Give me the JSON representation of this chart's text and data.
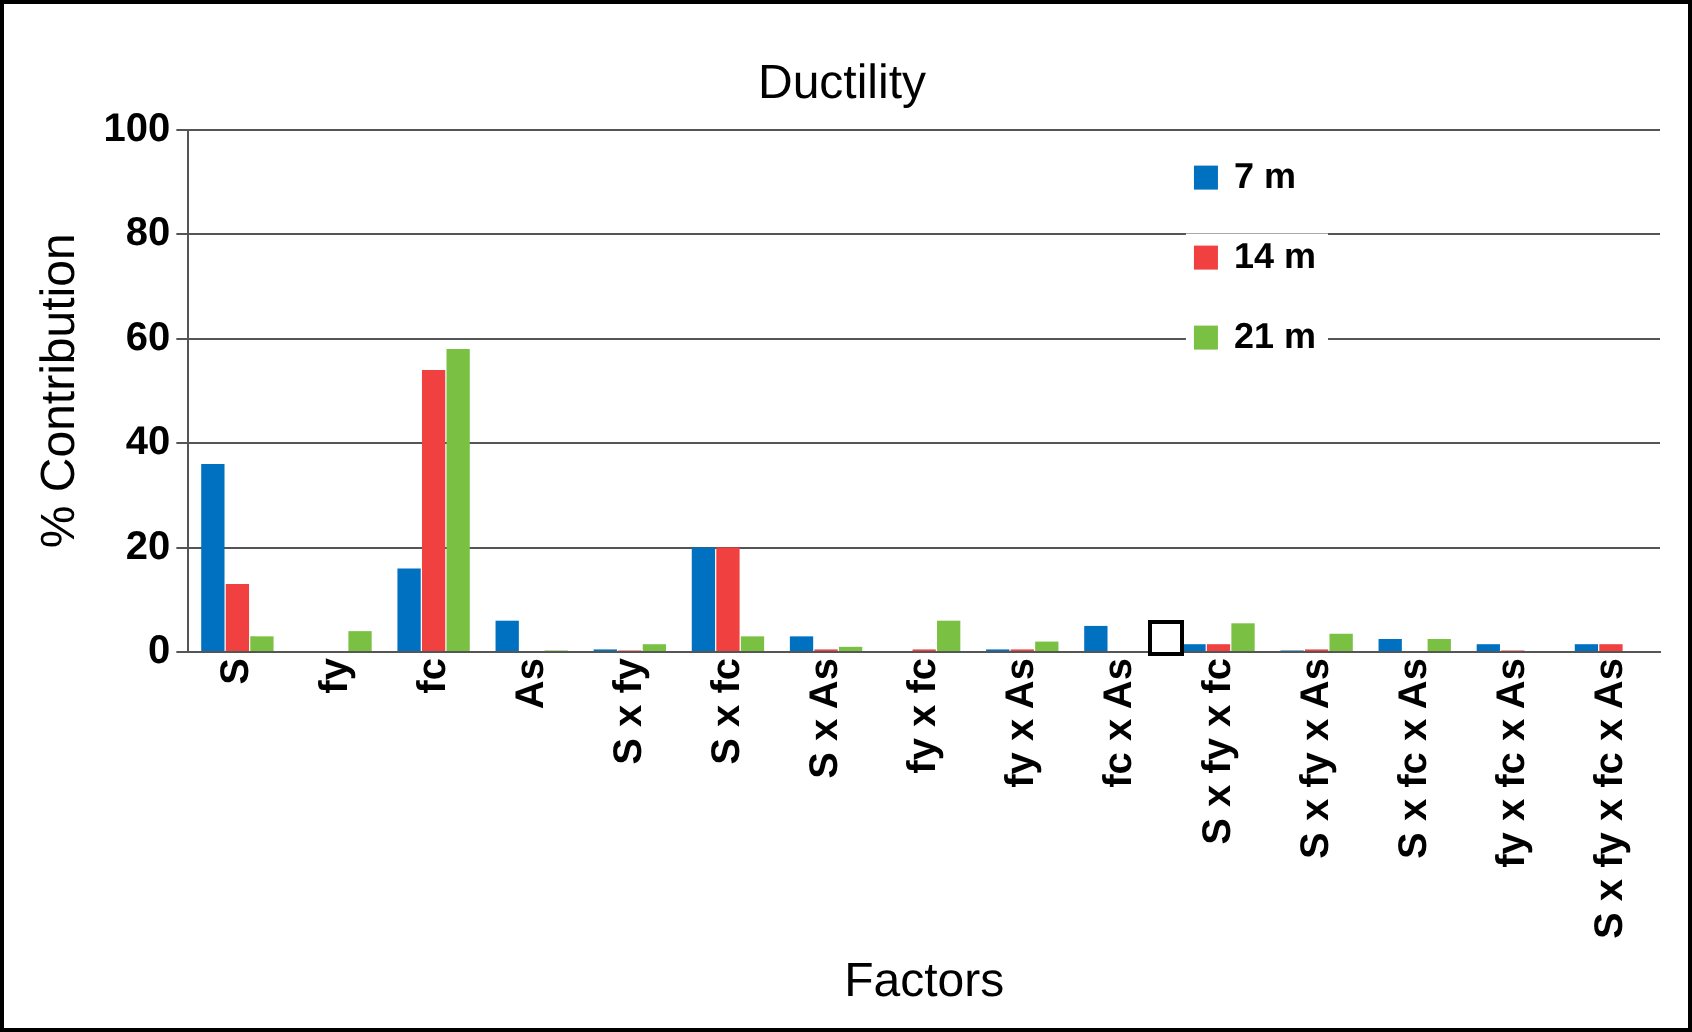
{
  "chart_data": {
    "type": "bar",
    "title": "Ductility",
    "xlabel": "Factors",
    "ylabel": "% Contribution",
    "categories": [
      "S",
      "fy",
      "fc",
      "As",
      "S x fy",
      "S x fc",
      "S x As",
      "fy x fc",
      "fy x As",
      "fc x As",
      "S x fy x fc",
      "S x fy x As",
      "S x fc x As",
      "fy x fc x As",
      "S x fy x fc x As"
    ],
    "series": [
      {
        "name": "7 m",
        "color": "#0070c0",
        "values": [
          36,
          0,
          16,
          6,
          0.5,
          20,
          3,
          0,
          0.5,
          5,
          1.5,
          0.3,
          2.5,
          1.5,
          1.5
        ]
      },
      {
        "name": "14 m",
        "color": "#f04040",
        "values": [
          13,
          0,
          54,
          0,
          0.3,
          20,
          0.5,
          0.5,
          0.5,
          null,
          1.5,
          0.5,
          0,
          0.3,
          1.5
        ]
      },
      {
        "name": "21 m",
        "color": "#7ac143",
        "values": [
          3,
          4,
          58,
          0.3,
          1.5,
          3,
          1,
          6,
          2,
          null,
          5.5,
          3.5,
          2.5,
          0,
          0
        ]
      }
    ],
    "ylim": [
      0,
      100
    ],
    "yticks": [
      0,
      20,
      40,
      60,
      80,
      100
    ],
    "grid": "y",
    "legend": "top right"
  }
}
